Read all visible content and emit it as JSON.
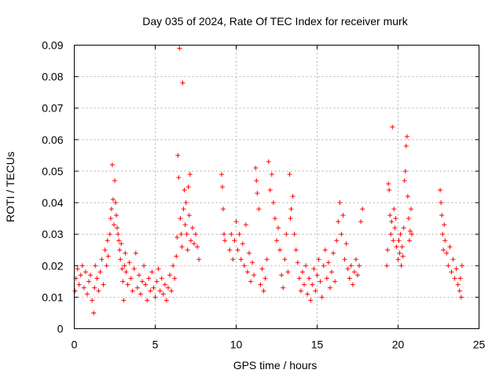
{
  "chart_data": {
    "type": "scatter",
    "title": "Day 035 of 2024, Rate Of TEC Index for receiver murk",
    "xlabel": "GPS time / hours",
    "ylabel": "ROTI / TECUs",
    "xlim": [
      0,
      25
    ],
    "ylim": [
      0,
      0.09
    ],
    "xticks": [
      "0",
      "5",
      "10",
      "15",
      "20",
      "25"
    ],
    "yticks": [
      "0",
      "0.01",
      "0.02",
      "0.03",
      "0.04",
      "0.05",
      "0.06",
      "0.07",
      "0.08",
      "0.09"
    ],
    "grid": true,
    "marker": "+",
    "point_color": "#ff0000",
    "series": [
      {
        "values": [
          [
            0.05,
            0.012
          ],
          [
            0.1,
            0.016
          ],
          [
            0.2,
            0.019
          ],
          [
            0.3,
            0.014
          ],
          [
            0.4,
            0.017
          ],
          [
            0.5,
            0.02
          ],
          [
            0.6,
            0.013
          ],
          [
            0.7,
            0.018
          ],
          [
            0.8,
            0.011
          ],
          [
            0.9,
            0.015
          ],
          [
            1.0,
            0.017
          ],
          [
            1.1,
            0.009
          ],
          [
            1.2,
            0.005
          ],
          [
            1.25,
            0.013
          ],
          [
            1.3,
            0.02
          ],
          [
            1.4,
            0.016
          ],
          [
            1.5,
            0.012
          ],
          [
            1.6,
            0.018
          ],
          [
            1.7,
            0.022
          ],
          [
            1.8,
            0.014
          ],
          [
            1.9,
            0.025
          ],
          [
            2.0,
            0.02
          ],
          [
            2.05,
            0.028
          ],
          [
            2.1,
            0.023
          ],
          [
            2.2,
            0.03
          ],
          [
            2.25,
            0.035
          ],
          [
            2.3,
            0.038
          ],
          [
            2.35,
            0.052
          ],
          [
            2.4,
            0.041
          ],
          [
            2.45,
            0.033
          ],
          [
            2.5,
            0.047
          ],
          [
            2.55,
            0.04
          ],
          [
            2.6,
            0.036
          ],
          [
            2.65,
            0.032
          ],
          [
            2.7,
            0.03
          ],
          [
            2.75,
            0.028
          ],
          [
            2.8,
            0.025
          ],
          [
            2.85,
            0.022
          ],
          [
            2.9,
            0.027
          ],
          [
            2.95,
            0.019
          ],
          [
            3.0,
            0.015
          ],
          [
            3.05,
            0.009
          ],
          [
            3.1,
            0.02
          ],
          [
            3.15,
            0.024
          ],
          [
            3.2,
            0.018
          ],
          [
            3.3,
            0.014
          ],
          [
            3.4,
            0.021
          ],
          [
            3.5,
            0.016
          ],
          [
            3.6,
            0.012
          ],
          [
            3.7,
            0.019
          ],
          [
            3.8,
            0.024
          ],
          [
            3.9,
            0.013
          ],
          [
            4.0,
            0.017
          ],
          [
            4.1,
            0.011
          ],
          [
            4.2,
            0.015
          ],
          [
            4.3,
            0.02
          ],
          [
            4.4,
            0.014
          ],
          [
            4.5,
            0.009
          ],
          [
            4.6,
            0.016
          ],
          [
            4.7,
            0.012
          ],
          [
            4.8,
            0.018
          ],
          [
            4.9,
            0.013
          ],
          [
            5.0,
            0.01
          ],
          [
            5.1,
            0.015
          ],
          [
            5.2,
            0.019
          ],
          [
            5.3,
            0.012
          ],
          [
            5.4,
            0.016
          ],
          [
            5.5,
            0.011
          ],
          [
            5.6,
            0.014
          ],
          [
            5.7,
            0.009
          ],
          [
            5.8,
            0.013
          ],
          [
            5.9,
            0.017
          ],
          [
            6.0,
            0.012
          ],
          [
            6.1,
            0.02
          ],
          [
            6.2,
            0.016
          ],
          [
            6.3,
            0.023
          ],
          [
            6.35,
            0.029
          ],
          [
            6.4,
            0.055
          ],
          [
            6.45,
            0.048
          ],
          [
            6.5,
            0.089
          ],
          [
            6.55,
            0.035
          ],
          [
            6.6,
            0.03
          ],
          [
            6.65,
            0.026
          ],
          [
            6.7,
            0.078
          ],
          [
            6.75,
            0.038
          ],
          [
            6.8,
            0.044
          ],
          [
            6.85,
            0.033
          ],
          [
            6.9,
            0.04
          ],
          [
            6.95,
            0.03
          ],
          [
            7.0,
            0.025
          ],
          [
            7.05,
            0.045
          ],
          [
            7.1,
            0.036
          ],
          [
            7.15,
            0.049
          ],
          [
            7.2,
            0.028
          ],
          [
            7.3,
            0.032
          ],
          [
            7.4,
            0.027
          ],
          [
            7.5,
            0.03
          ],
          [
            7.6,
            0.026
          ],
          [
            7.7,
            0.022
          ],
          [
            9.1,
            0.049
          ],
          [
            9.15,
            0.045
          ],
          [
            9.2,
            0.038
          ],
          [
            9.25,
            0.03
          ],
          [
            9.3,
            0.028
          ],
          [
            9.6,
            0.025
          ],
          [
            9.7,
            0.03
          ],
          [
            9.8,
            0.022
          ],
          [
            9.9,
            0.028
          ],
          [
            10.0,
            0.034
          ],
          [
            10.1,
            0.025
          ],
          [
            10.2,
            0.03
          ],
          [
            10.3,
            0.022
          ],
          [
            10.4,
            0.027
          ],
          [
            10.5,
            0.02
          ],
          [
            10.6,
            0.033
          ],
          [
            10.7,
            0.018
          ],
          [
            10.8,
            0.024
          ],
          [
            10.9,
            0.015
          ],
          [
            11.0,
            0.021
          ],
          [
            11.1,
            0.017
          ],
          [
            11.2,
            0.051
          ],
          [
            11.25,
            0.047
          ],
          [
            11.3,
            0.043
          ],
          [
            11.4,
            0.038
          ],
          [
            11.5,
            0.014
          ],
          [
            11.6,
            0.019
          ],
          [
            11.7,
            0.012
          ],
          [
            11.8,
            0.016
          ],
          [
            11.9,
            0.022
          ],
          [
            12.0,
            0.053
          ],
          [
            12.1,
            0.044
          ],
          [
            12.2,
            0.049
          ],
          [
            12.3,
            0.04
          ],
          [
            12.4,
            0.035
          ],
          [
            12.5,
            0.028
          ],
          [
            12.6,
            0.032
          ],
          [
            12.7,
            0.025
          ],
          [
            12.8,
            0.017
          ],
          [
            12.9,
            0.013
          ],
          [
            13.0,
            0.022
          ],
          [
            13.1,
            0.03
          ],
          [
            13.2,
            0.018
          ],
          [
            13.3,
            0.049
          ],
          [
            13.35,
            0.035
          ],
          [
            13.4,
            0.038
          ],
          [
            13.5,
            0.042
          ],
          [
            13.6,
            0.03
          ],
          [
            13.7,
            0.025
          ],
          [
            13.8,
            0.021
          ],
          [
            13.9,
            0.016
          ],
          [
            14.0,
            0.012
          ],
          [
            14.1,
            0.018
          ],
          [
            14.2,
            0.014
          ],
          [
            14.3,
            0.02
          ],
          [
            14.4,
            0.011
          ],
          [
            14.5,
            0.016
          ],
          [
            14.6,
            0.009
          ],
          [
            14.7,
            0.014
          ],
          [
            14.8,
            0.019
          ],
          [
            14.9,
            0.012
          ],
          [
            15.0,
            0.017
          ],
          [
            15.1,
            0.022
          ],
          [
            15.2,
            0.015
          ],
          [
            15.3,
            0.01
          ],
          [
            15.4,
            0.02
          ],
          [
            15.5,
            0.025
          ],
          [
            15.6,
            0.016
          ],
          [
            15.7,
            0.021
          ],
          [
            15.8,
            0.013
          ],
          [
            15.9,
            0.018
          ],
          [
            16.0,
            0.024
          ],
          [
            16.1,
            0.015
          ],
          [
            16.2,
            0.028
          ],
          [
            16.3,
            0.034
          ],
          [
            16.4,
            0.04
          ],
          [
            16.5,
            0.03
          ],
          [
            16.6,
            0.036
          ],
          [
            16.7,
            0.022
          ],
          [
            16.8,
            0.027
          ],
          [
            16.9,
            0.019
          ],
          [
            17.0,
            0.016
          ],
          [
            17.1,
            0.02
          ],
          [
            17.2,
            0.014
          ],
          [
            17.3,
            0.018
          ],
          [
            17.4,
            0.022
          ],
          [
            17.5,
            0.017
          ],
          [
            17.6,
            0.02
          ],
          [
            17.7,
            0.034
          ],
          [
            17.8,
            0.038
          ],
          [
            19.3,
            0.02
          ],
          [
            19.35,
            0.025
          ],
          [
            19.4,
            0.046
          ],
          [
            19.45,
            0.044
          ],
          [
            19.5,
            0.036
          ],
          [
            19.55,
            0.03
          ],
          [
            19.6,
            0.034
          ],
          [
            19.65,
            0.064
          ],
          [
            19.7,
            0.028
          ],
          [
            19.75,
            0.038
          ],
          [
            19.8,
            0.032
          ],
          [
            19.85,
            0.035
          ],
          [
            19.9,
            0.026
          ],
          [
            20.0,
            0.022
          ],
          [
            20.05,
            0.028
          ],
          [
            20.1,
            0.024
          ],
          [
            20.15,
            0.03
          ],
          [
            20.2,
            0.02
          ],
          [
            20.25,
            0.026
          ],
          [
            20.3,
            0.023
          ],
          [
            20.35,
            0.032
          ],
          [
            20.4,
            0.047
          ],
          [
            20.45,
            0.05
          ],
          [
            20.5,
            0.058
          ],
          [
            20.55,
            0.061
          ],
          [
            20.6,
            0.042
          ],
          [
            20.65,
            0.035
          ],
          [
            20.7,
            0.028
          ],
          [
            20.75,
            0.031
          ],
          [
            20.8,
            0.038
          ],
          [
            20.85,
            0.03
          ],
          [
            22.6,
            0.044
          ],
          [
            22.65,
            0.04
          ],
          [
            22.7,
            0.036
          ],
          [
            22.75,
            0.03
          ],
          [
            22.8,
            0.025
          ],
          [
            22.85,
            0.033
          ],
          [
            22.9,
            0.028
          ],
          [
            23.0,
            0.024
          ],
          [
            23.1,
            0.02
          ],
          [
            23.2,
            0.026
          ],
          [
            23.3,
            0.018
          ],
          [
            23.4,
            0.022
          ],
          [
            23.5,
            0.016
          ],
          [
            23.6,
            0.019
          ],
          [
            23.7,
            0.014
          ],
          [
            23.8,
            0.012
          ],
          [
            23.85,
            0.016
          ],
          [
            23.9,
            0.01
          ],
          [
            23.95,
            0.02
          ]
        ]
      }
    ]
  }
}
